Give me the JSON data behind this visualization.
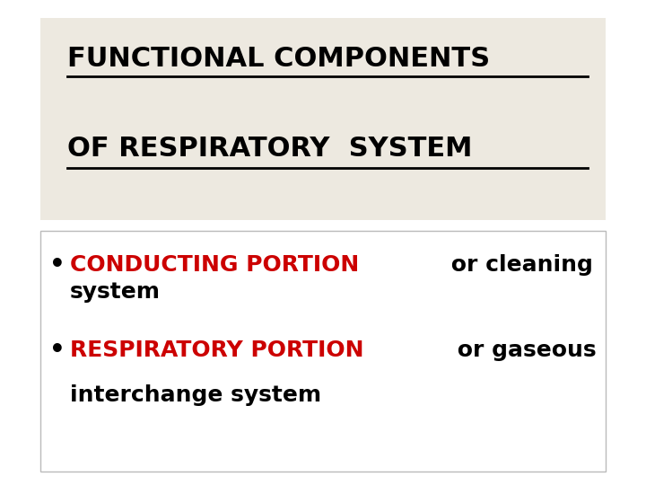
{
  "bg_color": "#ffffff",
  "title_box_color": "#ede9e0",
  "title_line1": "FUNCTIONAL COMPONENTS",
  "title_line2": "OF RESPIRATORY  SYSTEM",
  "title_color": "#000000",
  "title_fontsize": 22,
  "bullet1_red": "CONDUCTING PORTION",
  "bullet1_black_inline": " or cleaning",
  "bullet1_black_wrap": "system",
  "bullet2_red": "RESPIRATORY PORTION",
  "bullet2_black_inline": " or gaseous",
  "bullet2_black_wrap": "interchange system",
  "bullet_red_color": "#cc0000",
  "bullet_black_color": "#000000",
  "bullet_fontsize": 18,
  "body_box_color": "#ffffff",
  "body_border_color": "#bbbbbb",
  "underline_color": "#000000"
}
